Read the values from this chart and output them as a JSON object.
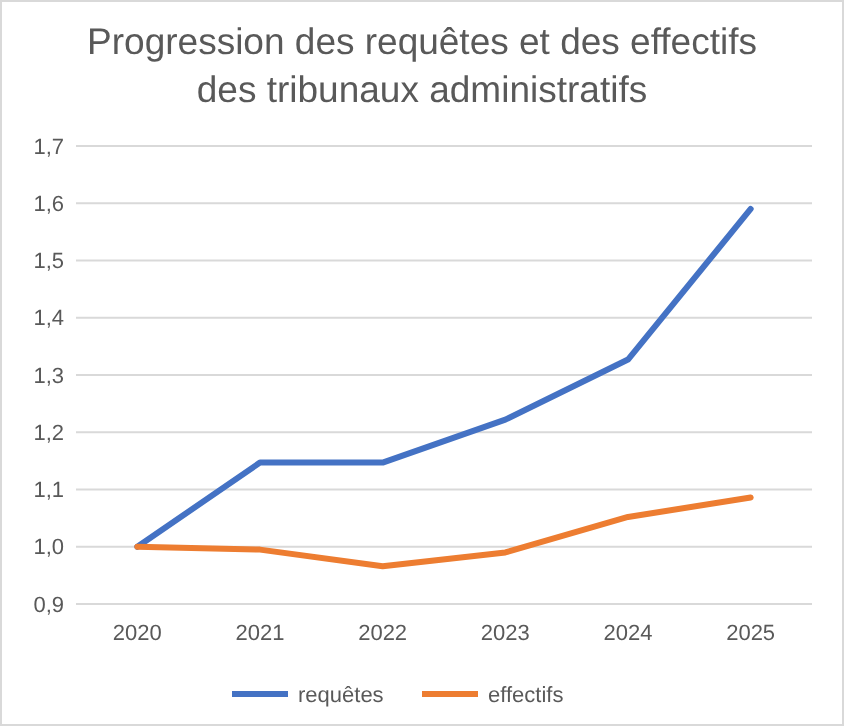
{
  "chart_data": {
    "type": "line",
    "title": "Progression des requêtes et des effectifs des tribunaux administratifs",
    "categories": [
      "2020",
      "2021",
      "2022",
      "2023",
      "2024",
      "2025"
    ],
    "series": [
      {
        "name": "requêtes",
        "color": "#4472c4",
        "values": [
          1.0,
          1.147,
          1.147,
          1.222,
          1.327,
          1.59
        ]
      },
      {
        "name": "effectifs",
        "color": "#ed7d31",
        "values": [
          1.0,
          0.995,
          0.966,
          0.99,
          1.052,
          1.086
        ]
      }
    ],
    "ylim": [
      0.9,
      1.7
    ],
    "yticks": [
      {
        "value": 0.9,
        "label": "0,9"
      },
      {
        "value": 1.0,
        "label": "1,0"
      },
      {
        "value": 1.1,
        "label": "1,1"
      },
      {
        "value": 1.2,
        "label": "1,2"
      },
      {
        "value": 1.3,
        "label": "1,3"
      },
      {
        "value": 1.4,
        "label": "1,4"
      },
      {
        "value": 1.5,
        "label": "1,5"
      },
      {
        "value": 1.6,
        "label": "1,6"
      },
      {
        "value": 1.7,
        "label": "1,7"
      }
    ],
    "grid": "y",
    "legend": "bottom",
    "marker": "none",
    "line_style": "solid"
  }
}
